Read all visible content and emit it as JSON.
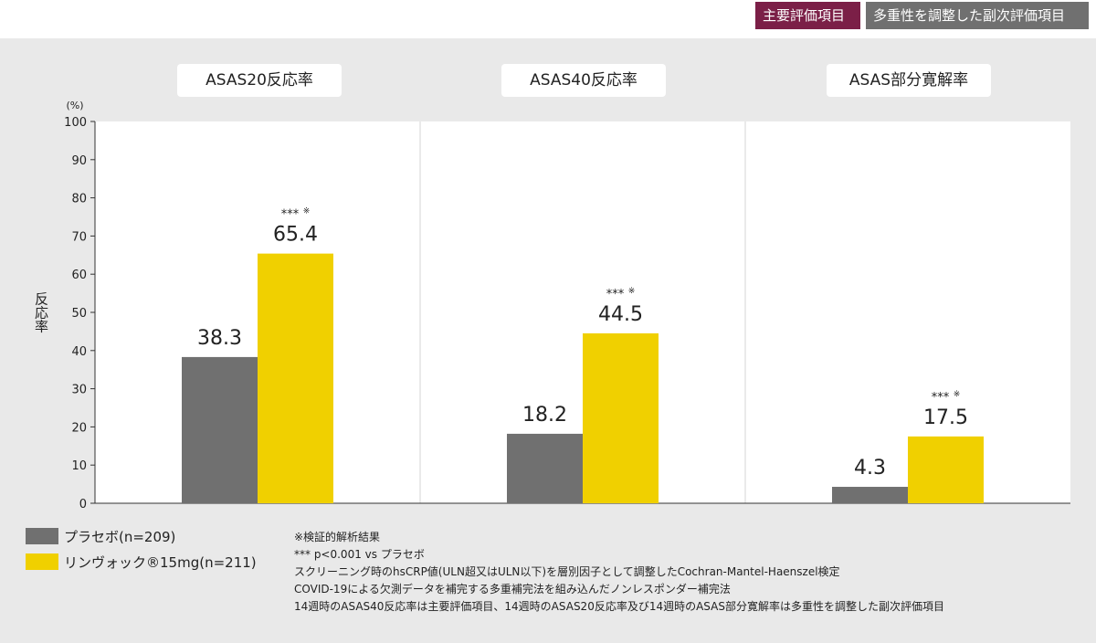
{
  "header": {
    "primary_badge": "主要評価項目",
    "secondary_badge": "多重性を調整した副次評価項目"
  },
  "colors": {
    "placebo": "#707070",
    "drug": "#f0d000",
    "primary_badge": "#7b1f47",
    "secondary_badge": "#707070"
  },
  "legend": [
    {
      "label": "プラセボ(n=209)",
      "color": "#707070"
    },
    {
      "label": "リンヴォック®15mg(n=211)",
      "color": "#f0d000"
    }
  ],
  "notes": [
    "※検証的解析結果",
    "*** p<0.001 vs プラセボ",
    "スクリーニング時のhsCRP値(ULN超又はULN以下)を層別因子として調整したCochran-Mantel-Haenszel検定",
    "COVID-19による欠測データを補完する多重補完法を組み込んだノンレスポンダー補完法",
    "14週時のASAS40反応率は主要評価項目、14週時のASAS20反応率及び14週時のASAS部分寛解率は多重性を調整した副次評価項目"
  ],
  "chart_data": {
    "type": "bar",
    "ylabel": "反応率",
    "yunit": "(%)",
    "ylim": [
      0,
      100
    ],
    "yticks": [
      0,
      10,
      20,
      30,
      40,
      50,
      60,
      70,
      80,
      90,
      100
    ],
    "categories": [
      "ASAS20反応率",
      "ASAS40反応率",
      "ASAS部分寛解率"
    ],
    "series": [
      {
        "name": "プラセボ(n=209)",
        "values": [
          38.3,
          18.2,
          4.3
        ],
        "labels": [
          "38.3",
          "18.2",
          "4.3"
        ]
      },
      {
        "name": "リンヴォック®15mg(n=211)",
        "values": [
          65.4,
          44.5,
          17.5
        ],
        "labels": [
          "65.4",
          "44.5",
          "17.5"
        ]
      }
    ],
    "significance": [
      "***",
      "***",
      "***"
    ],
    "significance_note_mark": "※"
  }
}
